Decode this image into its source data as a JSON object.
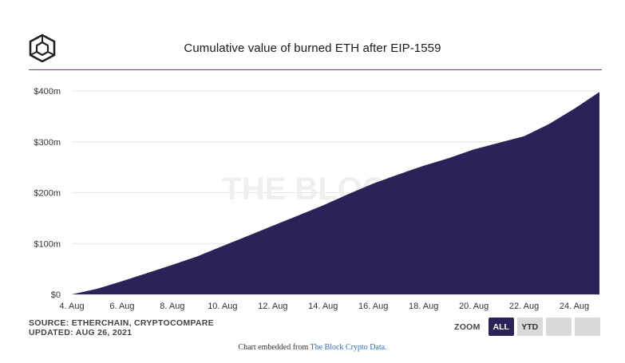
{
  "header": {
    "title": "Cumulative value of burned ETH after EIP-1559"
  },
  "chart_data": {
    "type": "area",
    "title": "Cumulative value of burned ETH after EIP-1559",
    "x_start": "4. Aug",
    "x": [
      "4. Aug",
      "5. Aug",
      "6. Aug",
      "7. Aug",
      "8. Aug",
      "9. Aug",
      "10. Aug",
      "11. Aug",
      "12. Aug",
      "13. Aug",
      "14. Aug",
      "15. Aug",
      "16. Aug",
      "17. Aug",
      "18. Aug",
      "19. Aug",
      "20. Aug",
      "21. Aug",
      "22. Aug",
      "23. Aug",
      "24. Aug",
      "25. Aug"
    ],
    "series": [
      {
        "values": [
          0,
          11,
          26,
          42,
          58,
          75,
          95,
          115,
          135,
          155,
          175,
          197,
          218,
          236,
          253,
          268,
          285,
          298,
          311,
          335,
          365,
          398
        ]
      }
    ],
    "x_tick_labels": [
      "4. Aug",
      "6. Aug",
      "8. Aug",
      "10. Aug",
      "12. Aug",
      "14. Aug",
      "16. Aug",
      "18. Aug",
      "20. Aug",
      "22. Aug",
      "24. Aug"
    ],
    "y_tick_labels": [
      "$0",
      "$100m",
      "$200m",
      "$300m",
      "$400m"
    ],
    "ylim": [
      0,
      400
    ],
    "y_unit": "$m",
    "grid": true,
    "watermark": "THE BLOCK",
    "colors": {
      "area": "#2b2358",
      "grid": "#e6e6e6",
      "rule": "#8e2da5"
    }
  },
  "footer": {
    "source": "SOURCE: ETHERCHAIN, CRYPTOCOMPARE",
    "updated": "UPDATED: AUG 26, 2021"
  },
  "zoom": {
    "label": "ZOOM",
    "buttons": [
      "ALL",
      "YTD",
      "",
      ""
    ],
    "active": "ALL"
  },
  "embed": {
    "prefix": "Chart embedded from",
    "link": "The Block Crypto Data."
  }
}
